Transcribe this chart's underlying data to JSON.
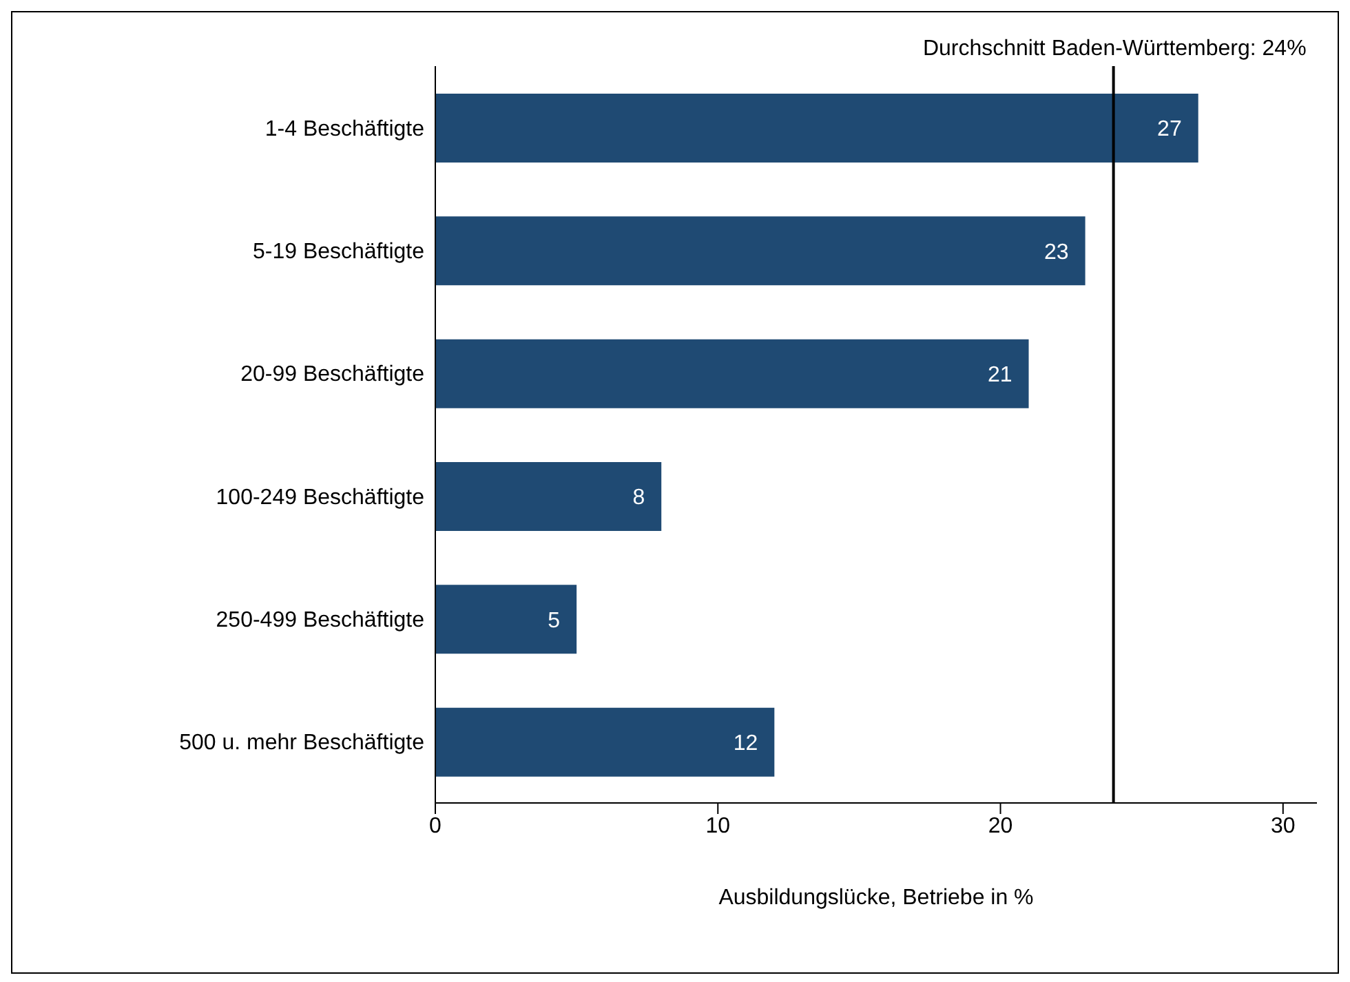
{
  "chart_data": {
    "type": "bar",
    "orientation": "horizontal",
    "xlabel": "Ausbildungslücke, Betriebe in %",
    "categories": [
      "1-4 Beschäftigte",
      "5-19 Beschäftigte",
      "20-99 Beschäftigte",
      "100-249 Beschäftigte",
      "250-499 Beschäftigte",
      "500 u. mehr Beschäftigte"
    ],
    "values": [
      27,
      23,
      21,
      8,
      5,
      12
    ],
    "color": "#1f4a73",
    "data_labels": true,
    "xlim": [
      0,
      31.2
    ],
    "xticks": [
      0,
      10,
      20,
      30
    ],
    "grid": false,
    "legend": false,
    "ref_lines": [
      {
        "axis": "x",
        "value": 24,
        "label": "Durchschnitt Baden-Württemberg: 24%",
        "color": "#000000",
        "line_style": "solid"
      }
    ]
  }
}
